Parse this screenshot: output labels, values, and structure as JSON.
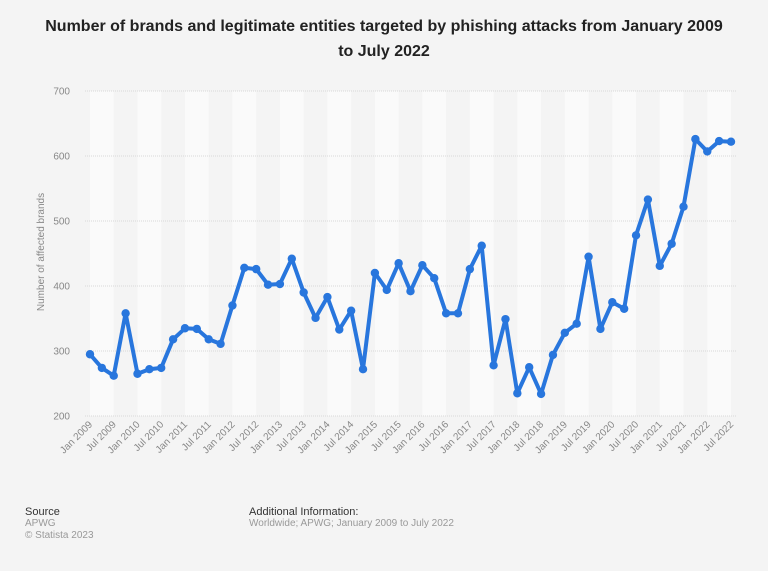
{
  "chart_data": {
    "type": "line",
    "title": "Number of brands and legitimate entities targeted by phishing attacks from January 2009 to July 2022",
    "xlabel": "",
    "ylabel": "Number of affected brands",
    "ylim": [
      200,
      700
    ],
    "yticks": [
      200,
      300,
      400,
      500,
      600,
      700
    ],
    "grid": true,
    "legend": "none",
    "series_color": "#2876dd",
    "x_tick_labels": [
      "Jan 2009",
      "Jul 2009",
      "Jan 2010",
      "Jul 2010",
      "Jan 2011",
      "Jul 2011",
      "Jan 2012",
      "Jul 2012",
      "Jan 2013",
      "Jul 2013",
      "Jan 2014",
      "Jul 2014",
      "Jan 2015",
      "Jul 2015",
      "Jan 2016",
      "Jul 2016",
      "Jan 2017",
      "Jul 2017",
      "Jan 2018",
      "Jul 2018",
      "Jan 2019",
      "Jul 2019",
      "Jan 2020",
      "Jul 2020",
      "Jan 2021",
      "Jul 2021",
      "Jan 2022",
      "Jul 2022"
    ],
    "x": [
      "Jan 2009",
      "Apr 2009",
      "Jul 2009",
      "Oct 2009",
      "Jan 2010",
      "Apr 2010",
      "Jul 2010",
      "Oct 2010",
      "Jan 2011",
      "Apr 2011",
      "Jul 2011",
      "Oct 2011",
      "Jan 2012",
      "Apr 2012",
      "Jul 2012",
      "Oct 2012",
      "Jan 2013",
      "Apr 2013",
      "Jul 2013",
      "Oct 2013",
      "Jan 2014",
      "Apr 2014",
      "Jul 2014",
      "Oct 2014",
      "Jan 2015",
      "Apr 2015",
      "Jul 2015",
      "Oct 2015",
      "Jan 2016",
      "Apr 2016",
      "Jul 2016",
      "Oct 2016",
      "Jan 2017",
      "Apr 2017",
      "Jul 2017",
      "Oct 2017",
      "Jan 2018",
      "Apr 2018",
      "Jul 2018",
      "Oct 2018",
      "Jan 2019",
      "Apr 2019",
      "Jul 2019",
      "Oct 2019",
      "Jan 2020",
      "Apr 2020",
      "Jul 2020",
      "Oct 2020",
      "Jan 2021",
      "Apr 2021",
      "Jul 2021",
      "Oct 2021",
      "Jan 2022",
      "Apr 2022",
      "Jul 2022"
    ],
    "series": [
      {
        "name": "Number of affected brands",
        "values": [
          295,
          274,
          262,
          358,
          265,
          272,
          274,
          318,
          335,
          334,
          318,
          311,
          370,
          428,
          426,
          402,
          403,
          442,
          390,
          351,
          383,
          333,
          362,
          272,
          420,
          394,
          435,
          392,
          432,
          412,
          358,
          358,
          426,
          462,
          278,
          349,
          235,
          275,
          234,
          294,
          328,
          342,
          445,
          334,
          375,
          365,
          478,
          533,
          431,
          465,
          522,
          626,
          607,
          623,
          622
        ]
      }
    ]
  },
  "footer": {
    "source_heading": "Source",
    "source_name": "APWG",
    "copyright": "© Statista 2023",
    "info_heading": "Additional Information:",
    "info_text": "Worldwide; APWG; January 2009 to July 2022"
  }
}
